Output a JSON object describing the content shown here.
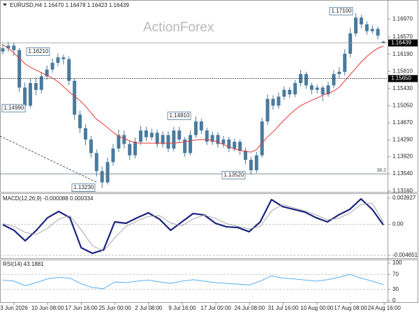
{
  "chart_data": [
    {
      "type": "candlestick",
      "title": "EURUSD,H4 1.16470 1.16478 1.16423 1.16439",
      "watermark": "ActionForex",
      "color": "#4a7b9d",
      "ylim": [
        1.1314,
        1.1739
      ],
      "yticks": [
        {
          "value": 1.1697,
          "label": "1.16970"
        },
        {
          "value": 1.1657,
          "label": "1.16570"
        },
        {
          "value": 1.1619,
          "label": "1.16190"
        },
        {
          "value": 1.1581,
          "label": "1.15810"
        },
        {
          "value": 1.1543,
          "label": "1.15430"
        },
        {
          "value": 1.1505,
          "label": "1.15050"
        },
        {
          "value": 1.1467,
          "label": "1.14670"
        },
        {
          "value": 1.1429,
          "label": "1.14290"
        },
        {
          "value": 1.1392,
          "label": "1.13920"
        },
        {
          "value": 1.1354,
          "label": "1.13540"
        },
        {
          "value": 1.1316,
          "label": "1.13160"
        }
      ],
      "grid": false,
      "open": [
        1.1625,
        1.1632,
        1.1638,
        1.1628,
        1.1545,
        1.1505,
        1.1555,
        1.154,
        1.157,
        1.1585,
        1.16,
        1.1612,
        1.1608,
        1.156,
        1.1485,
        1.1455,
        1.143,
        1.14,
        1.136,
        1.1335,
        1.138,
        1.141,
        1.144,
        1.142,
        1.1395,
        1.1425,
        1.145,
        1.1435,
        1.1445,
        1.142,
        1.144,
        1.141,
        1.145,
        1.143,
        1.14,
        1.144,
        1.147,
        1.145,
        1.1425,
        1.144,
        1.142,
        1.143,
        1.141,
        1.1425,
        1.1405,
        1.1385,
        1.1362,
        1.1395,
        1.147,
        1.152,
        1.1505,
        1.1525,
        1.154,
        1.153,
        1.1555,
        1.1575,
        1.155,
        1.154,
        1.1545,
        1.153,
        1.155,
        1.1575,
        1.158,
        1.162,
        1.1665,
        1.17,
        1.1685,
        1.167,
        1.1675,
        1.1647
      ],
      "high": [
        1.1642,
        1.1646,
        1.1645,
        1.1633,
        1.1556,
        1.1566,
        1.1568,
        1.158,
        1.1594,
        1.161,
        1.1621,
        1.1618,
        1.1614,
        1.1566,
        1.1494,
        1.1464,
        1.1438,
        1.1408,
        1.137,
        1.139,
        1.142,
        1.1452,
        1.145,
        1.1428,
        1.1434,
        1.146,
        1.1458,
        1.1454,
        1.1452,
        1.1448,
        1.1448,
        1.1458,
        1.1458,
        1.1436,
        1.145,
        1.1481,
        1.1476,
        1.1456,
        1.1448,
        1.1446,
        1.1438,
        1.1436,
        1.1432,
        1.143,
        1.1412,
        1.1392,
        1.1402,
        1.1478,
        1.153,
        1.1528,
        1.1534,
        1.1548,
        1.1546,
        1.1562,
        1.1584,
        1.158,
        1.1556,
        1.1552,
        1.155,
        1.1558,
        1.1584,
        1.159,
        1.163,
        1.1676,
        1.171,
        1.1706,
        1.1692,
        1.1684,
        1.168,
        1.16478
      ],
      "low": [
        1.1618,
        1.1624,
        1.1615,
        1.1535,
        1.1499,
        1.15,
        1.1528,
        1.1532,
        1.1562,
        1.1578,
        1.1592,
        1.1596,
        1.155,
        1.1474,
        1.1444,
        1.1418,
        1.139,
        1.1348,
        1.1323,
        1.133,
        1.1372,
        1.1402,
        1.141,
        1.1385,
        1.1388,
        1.1418,
        1.1426,
        1.1428,
        1.1412,
        1.1412,
        1.1402,
        1.1404,
        1.1422,
        1.1392,
        1.1395,
        1.1434,
        1.1442,
        1.1418,
        1.1418,
        1.1412,
        1.1412,
        1.1402,
        1.1404,
        1.1396,
        1.1376,
        1.1352,
        1.1356,
        1.139,
        1.1462,
        1.1496,
        1.1498,
        1.1518,
        1.1522,
        1.1524,
        1.1548,
        1.1542,
        1.153,
        1.1532,
        1.1515,
        1.1524,
        1.1544,
        1.1566,
        1.1572,
        1.1612,
        1.1658,
        1.1676,
        1.1662,
        1.1664,
        1.1652,
        1.16423
      ],
      "close": [
        1.1632,
        1.1638,
        1.1628,
        1.1545,
        1.1505,
        1.1555,
        1.154,
        1.157,
        1.1585,
        1.16,
        1.1612,
        1.1608,
        1.156,
        1.1485,
        1.1455,
        1.143,
        1.14,
        1.136,
        1.1335,
        1.138,
        1.141,
        1.144,
        1.142,
        1.1395,
        1.1425,
        1.145,
        1.1435,
        1.1445,
        1.142,
        1.144,
        1.141,
        1.145,
        1.143,
        1.14,
        1.144,
        1.147,
        1.145,
        1.1425,
        1.144,
        1.142,
        1.143,
        1.141,
        1.1425,
        1.1405,
        1.1385,
        1.1362,
        1.1395,
        1.147,
        1.152,
        1.1505,
        1.1525,
        1.154,
        1.153,
        1.1555,
        1.1575,
        1.155,
        1.154,
        1.1545,
        1.153,
        1.155,
        1.1575,
        1.158,
        1.162,
        1.1665,
        1.17,
        1.1685,
        1.167,
        1.1675,
        1.166,
        1.16439
      ],
      "overlay": {
        "color": "#e53935",
        "values": [
          1.164,
          1.1632,
          1.1622,
          1.161,
          1.1598,
          1.159,
          1.1584,
          1.1578,
          1.1572,
          1.1566,
          1.1558,
          1.1547,
          1.1536,
          1.1526,
          1.1516,
          1.1504,
          1.1489,
          1.1475,
          1.1466,
          1.1456,
          1.1446,
          1.1437,
          1.1432,
          1.1427,
          1.1423,
          1.1422,
          1.1422,
          1.1422,
          1.1422,
          1.1422,
          1.1422,
          1.1422,
          1.1423,
          1.1425,
          1.1427,
          1.1429,
          1.143,
          1.143,
          1.1428,
          1.1424,
          1.1419,
          1.1414,
          1.1409,
          1.1406,
          1.1404,
          1.1402,
          1.1408,
          1.1422,
          1.1436,
          1.1447,
          1.146,
          1.1473,
          1.1485,
          1.1496,
          1.1505,
          1.1511,
          1.1517,
          1.1522,
          1.1528,
          1.1533,
          1.1537,
          1.1546,
          1.156,
          1.1574,
          1.1588,
          1.1602,
          1.1614,
          1.1624,
          1.1632,
          1.1637
        ]
      },
      "price_lines": [
        {
          "value": 1.16439,
          "label": "1.16439"
        },
        {
          "value": 1.1565,
          "label": "1.15650"
        }
      ],
      "fib_line": {
        "value": 1.1354,
        "label": "38.2"
      },
      "annotations": [
        "1.17100",
        "1.16210",
        "1.14990",
        "1.14810",
        "1.13230",
        "1.13520"
      ]
    },
    {
      "type": "line",
      "title": "MACD(12,26,9) -0.000088 0.000334",
      "ylim": [
        -0.005069,
        0.004555
      ],
      "yticks": [
        0.003927,
        {
          "value": 0,
          "label": "0.00"
        },
        -0.004651
      ],
      "grid": true,
      "series": [
        {
          "color": "#1a237e",
          "values": [
            -5e-05,
            -0.00089,
            -0.00246,
            -0.00089,
            0.00099,
            0.00194,
            0.00099,
            -0.0035,
            -0.00434,
            -0.00382,
            0.00037,
            0.00016,
            0.00099,
            0.00173,
            0.00078,
            -0.00089,
            0.00037,
            0.00162,
            0.00141,
            0.00016,
            -0.00037,
            -0.00047,
            -0.0011,
            0.00037,
            0.00371,
            0.00267,
            0.00225,
            0.00183,
            0.00099,
            0.00037,
            0.00141,
            0.00225,
            0.00382,
            0.00225,
            -8.8e-05
          ]
        },
        {
          "color": "#a0a0a0",
          "values": [
            0.0001,
            -0.0003,
            -0.0012,
            -0.0015,
            -0.0006,
            0.0008,
            0.0013,
            -0.0008,
            -0.0032,
            -0.004,
            -0.002,
            -0.0003,
            0.0005,
            0.0012,
            0.0013,
            0.0002,
            -0.0002,
            0.0008,
            0.0014,
            0.0009,
            0.0001,
            -0.0003,
            -0.0007,
            -0.0003,
            0.002,
            0.003,
            0.0025,
            0.002,
            0.0014,
            0.0007,
            0.0009,
            0.0017,
            0.003,
            0.0032,
            0.000334
          ]
        }
      ]
    },
    {
      "type": "line",
      "title": "RSI(14) 43.1881",
      "ylim": [
        0,
        100
      ],
      "yticks": [
        100,
        70,
        30,
        0
      ],
      "grid": true,
      "series": [
        {
          "color": "#42a5f5",
          "values": [
            55,
            52,
            40,
            48,
            58,
            62,
            60,
            45,
            35,
            32,
            50,
            48,
            52,
            55,
            50,
            46,
            52,
            56,
            52,
            48,
            46,
            44,
            42,
            52,
            66,
            60,
            58,
            55,
            52,
            56,
            62,
            70,
            60,
            52,
            43.1881
          ]
        }
      ]
    }
  ],
  "time_labels": [
    "3 Jun 2026",
    "10 Jun 08:00",
    "17 Jun 16:00",
    "25 Jun 00:00",
    "2 Jul 08:00",
    "9 Jul 16:00",
    "17 Jul 00:00",
    "24 Jul 08:00",
    "31 Jul 16:00",
    "10 Aug 00:00",
    "17 Aug 08:00",
    "24 Aug 16:00"
  ]
}
